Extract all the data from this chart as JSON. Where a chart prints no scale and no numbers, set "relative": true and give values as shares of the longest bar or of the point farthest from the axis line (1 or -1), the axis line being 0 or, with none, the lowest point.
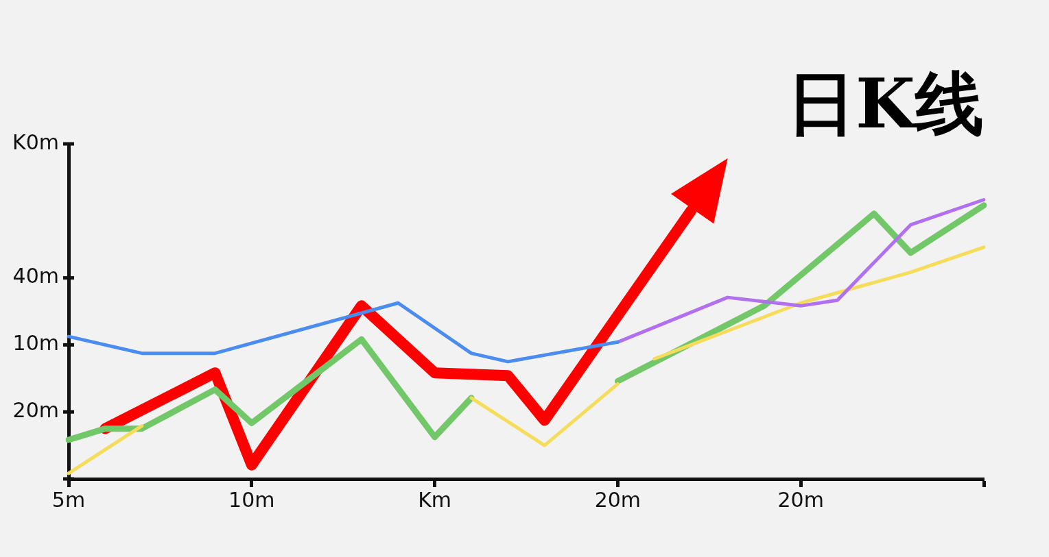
{
  "chart_data": {
    "type": "line",
    "title": "日K线",
    "relative": true,
    "categories": [
      "5m",
      null,
      null,
      null,
      null,
      "10m",
      null,
      null,
      null,
      null,
      "Km",
      null,
      null,
      null,
      null,
      "20m",
      null,
      null,
      null,
      null,
      "20m",
      null,
      null,
      null,
      null,
      null
    ],
    "annotations": [
      "K0m",
      "40m",
      "10m",
      "20m"
    ],
    "grid": false,
    "legend": false,
    "marker": "none",
    "line_style": "solid",
    "series": [
      {
        "color": "#4a8cf0",
        "values": [
          0.51,
          null,
          0.45,
          null,
          0.45,
          null,
          null,
          null,
          null,
          0.63,
          null,
          0.45,
          0.42,
          null,
          null,
          0.49,
          null,
          null,
          null,
          null,
          null,
          null,
          null,
          null,
          null,
          null
        ]
      },
      {
        "color": "#b070f0",
        "values": [
          null,
          null,
          null,
          null,
          null,
          null,
          null,
          null,
          null,
          null,
          null,
          null,
          null,
          null,
          null,
          0.49,
          null,
          null,
          0.65,
          null,
          0.62,
          0.64,
          null,
          0.91,
          null,
          1
        ]
      },
      {
        "color": "#f5dc5a",
        "values": [
          0.02,
          null,
          0.19,
          null,
          null,
          null,
          null,
          null,
          null,
          null,
          null,
          null,
          null,
          null,
          null,
          null,
          null,
          null,
          null,
          null,
          null,
          null,
          null,
          null,
          null,
          null
        ]
      },
      {
        "color": "#f5dc5a",
        "values": [
          null,
          null,
          null,
          null,
          null,
          null,
          null,
          null,
          null,
          null,
          null,
          0.29,
          null,
          0.12,
          null,
          0.34,
          null,
          null,
          null,
          null,
          null,
          null,
          null,
          null,
          null,
          null
        ]
      },
      {
        "color": "#f5dc5a",
        "values": [
          null,
          null,
          null,
          null,
          null,
          null,
          null,
          null,
          null,
          null,
          null,
          null,
          null,
          null,
          null,
          null,
          0.43,
          null,
          0.53,
          null,
          0.63,
          null,
          null,
          0.74,
          null,
          0.83
        ]
      },
      {
        "color": "#72c769",
        "values": [
          0.14,
          0.18,
          0.18,
          null,
          0.32,
          0.2,
          null,
          null,
          0.5,
          null,
          0.15,
          0.29,
          null,
          null,
          null,
          null,
          null,
          null,
          null,
          null,
          null,
          null,
          null,
          null,
          null,
          null
        ]
      },
      {
        "color": "#72c769",
        "values": [
          null,
          null,
          null,
          null,
          null,
          null,
          null,
          null,
          null,
          null,
          null,
          null,
          null,
          null,
          null,
          0.35,
          null,
          null,
          null,
          0.62,
          null,
          null,
          0.95,
          0.81,
          null,
          0.98
        ]
      },
      {
        "color": "#ff0000",
        "values": [
          null,
          0.18,
          null,
          null,
          0.38,
          0.05,
          null,
          null,
          0.62,
          null,
          0.38,
          null,
          0.37,
          0.21,
          null,
          null,
          null,
          0.96,
          null,
          null,
          null,
          null,
          null,
          null,
          null,
          null
        ]
      }
    ]
  }
}
